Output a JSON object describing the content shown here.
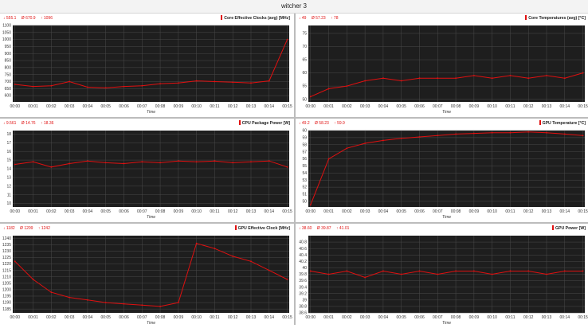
{
  "window": {
    "title": "witcher 3"
  },
  "xaxis": {
    "label": "Time",
    "ticks": [
      "00:00",
      "00:01",
      "00:02",
      "00:03",
      "00:04",
      "00:05",
      "00:06",
      "00:07",
      "00:08",
      "00:09",
      "00:10",
      "00:11",
      "00:12",
      "00:13",
      "00:14",
      "00:15"
    ]
  },
  "panels": [
    {
      "title": "Core Effective Clocks (avg) [MHz]",
      "stats": {
        "min": "↓ 555.1",
        "avg": "Ø 670.9",
        "max": "↑ 1096"
      }
    },
    {
      "title": "Core Temperatures (avg) [°C]",
      "stats": {
        "min": "↓ 49",
        "avg": "Ø 57.23",
        "max": "↑ 78"
      }
    },
    {
      "title": "CPU Package Power [W]",
      "stats": {
        "min": "↓ 9.561",
        "avg": "Ø 14.76",
        "max": "↑ 18.36"
      }
    },
    {
      "title": "GPU Temperature [°C]",
      "stats": {
        "min": "↓ 49.2",
        "avg": "Ø 58.23",
        "max": "↑ 59.9"
      }
    },
    {
      "title": "GPU Effective Clock [MHz]",
      "stats": {
        "min": "↓ 1182",
        "avg": "Ø 1209",
        "max": "↑ 1242"
      }
    },
    {
      "title": "GPU Power [W]",
      "stats": {
        "min": "↓ 38.60",
        "avg": "Ø 39.87",
        "max": "↑ 41.01"
      }
    }
  ],
  "chart_data": [
    {
      "type": "line",
      "title": "Core Effective Clocks (avg) [MHz]",
      "xlabel": "Time",
      "ylabel": "",
      "ylim": [
        555,
        1100
      ],
      "yticks": [
        550,
        600,
        650,
        700,
        750,
        800,
        850,
        900,
        950,
        1000,
        1050,
        1100
      ],
      "x": [
        "00:00",
        "00:01",
        "00:02",
        "00:03",
        "00:04",
        "00:05",
        "00:06",
        "00:07",
        "00:08",
        "00:09",
        "00:10",
        "00:11",
        "00:12",
        "00:13",
        "00:14",
        "00:15"
      ],
      "series": [
        {
          "values": [
            680,
            665,
            670,
            700,
            660,
            655,
            665,
            670,
            685,
            690,
            705,
            700,
            695,
            690,
            705,
            1000
          ]
        }
      ],
      "color": "#e01010",
      "grid": true
    },
    {
      "type": "line",
      "title": "Core Temperatures (avg) [°C]",
      "xlabel": "Time",
      "ylabel": "",
      "ylim": [
        49,
        78
      ],
      "yticks": [
        50,
        55,
        60,
        65,
        70,
        75
      ],
      "x": [
        "00:00",
        "00:01",
        "00:02",
        "00:03",
        "00:04",
        "00:05",
        "00:06",
        "00:07",
        "00:08",
        "00:09",
        "00:10",
        "00:11",
        "00:12",
        "00:13",
        "00:14",
        "00:15"
      ],
      "series": [
        {
          "values": [
            51,
            54,
            55,
            57,
            58,
            57,
            58,
            58,
            58,
            59,
            58,
            59,
            58,
            59,
            58,
            60
          ]
        }
      ],
      "color": "#e01010",
      "grid": true
    },
    {
      "type": "line",
      "title": "CPU Package Power [W]",
      "xlabel": "Time",
      "ylabel": "",
      "ylim": [
        9.6,
        18.4
      ],
      "yticks": [
        10,
        11,
        12,
        13,
        14,
        15,
        16,
        17,
        18
      ],
      "x": [
        "00:00",
        "00:01",
        "00:02",
        "00:03",
        "00:04",
        "00:05",
        "00:06",
        "00:07",
        "00:08",
        "00:09",
        "00:10",
        "00:11",
        "00:12",
        "00:13",
        "00:14",
        "00:15"
      ],
      "series": [
        {
          "values": [
            14.5,
            14.8,
            14.2,
            14.6,
            14.9,
            14.7,
            14.6,
            14.8,
            14.7,
            14.9,
            14.8,
            14.9,
            14.7,
            14.8,
            14.9,
            14.2
          ]
        }
      ],
      "color": "#e01010",
      "grid": true
    },
    {
      "type": "line",
      "title": "GPU Temperature [°C]",
      "xlabel": "Time",
      "ylabel": "",
      "ylim": [
        49.2,
        60
      ],
      "yticks": [
        50,
        51,
        52,
        53,
        54,
        55,
        56,
        57,
        58,
        59,
        60
      ],
      "x": [
        "00:00",
        "00:01",
        "00:02",
        "00:03",
        "00:04",
        "00:05",
        "00:06",
        "00:07",
        "00:08",
        "00:09",
        "00:10",
        "00:11",
        "00:12",
        "00:13",
        "00:14",
        "00:15"
      ],
      "series": [
        {
          "values": [
            49.5,
            56,
            57.5,
            58.2,
            58.6,
            58.9,
            59.1,
            59.3,
            59.5,
            59.6,
            59.7,
            59.7,
            59.8,
            59.7,
            59.5,
            59.3
          ]
        }
      ],
      "color": "#e01010",
      "grid": true
    },
    {
      "type": "line",
      "title": "GPU Effective Clock [MHz]",
      "xlabel": "Time",
      "ylabel": "",
      "ylim": [
        1182,
        1242
      ],
      "yticks": [
        1185,
        1190,
        1195,
        1200,
        1205,
        1210,
        1215,
        1220,
        1225,
        1230,
        1235,
        1240
      ],
      "x": [
        "00:00",
        "00:01",
        "00:02",
        "00:03",
        "00:04",
        "00:05",
        "00:06",
        "00:07",
        "00:08",
        "00:09",
        "00:10",
        "00:11",
        "00:12",
        "00:13",
        "00:14",
        "00:15"
      ],
      "series": [
        {
          "values": [
            1222,
            1208,
            1198,
            1194,
            1192,
            1190,
            1189,
            1188,
            1187,
            1190,
            1236,
            1232,
            1226,
            1222,
            1215,
            1208
          ]
        }
      ],
      "color": "#e01010",
      "grid": true
    },
    {
      "type": "line",
      "title": "GPU Power [W]",
      "xlabel": "Time",
      "ylabel": "",
      "ylim": [
        38.6,
        41.0
      ],
      "yticks": [
        38.6,
        38.8,
        39,
        39.2,
        39.4,
        39.6,
        39.8,
        40,
        40.2,
        40.4,
        40.6,
        40.8
      ],
      "x": [
        "00:00",
        "00:01",
        "00:02",
        "00:03",
        "00:04",
        "00:05",
        "00:06",
        "00:07",
        "00:08",
        "00:09",
        "00:10",
        "00:11",
        "00:12",
        "00:13",
        "00:14",
        "00:15"
      ],
      "series": [
        {
          "values": [
            39.9,
            39.8,
            39.9,
            39.7,
            39.9,
            39.8,
            39.9,
            39.8,
            39.9,
            39.9,
            39.8,
            39.9,
            39.9,
            39.8,
            39.9,
            39.9
          ]
        }
      ],
      "color": "#e01010",
      "grid": true
    }
  ]
}
